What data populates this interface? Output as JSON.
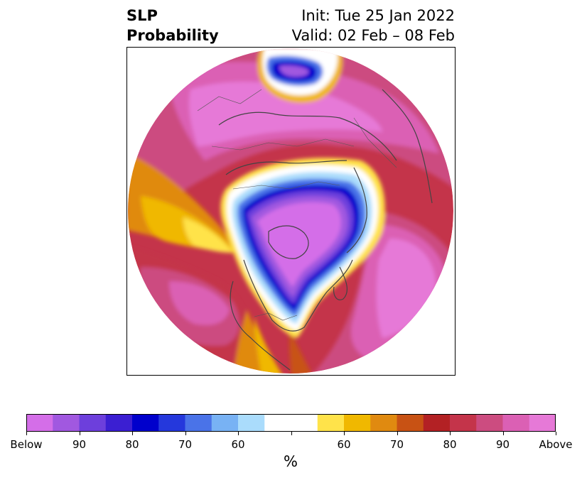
{
  "title": {
    "left_line1": "SLP",
    "left_line2": "Probability",
    "right_line1": "Init: Tue 25 Jan 2022",
    "right_line2": "Valid: 02 Feb – 08 Feb"
  },
  "colorbar": {
    "units": "%",
    "colors": [
      "#d46ee8",
      "#a158e0",
      "#6d3fdc",
      "#3b1fd2",
      "#0000cc",
      "#2538dc",
      "#4a73e8",
      "#78b2f4",
      "#aadcfc",
      "#ffffff",
      "#ffffff",
      "#ffe34a",
      "#f0b800",
      "#e08a10",
      "#c85214",
      "#b32124",
      "#c4344a",
      "#cc4c80",
      "#db60b4",
      "#e679d7"
    ],
    "tick_labels": [
      "Below",
      "90",
      "80",
      "70",
      "60",
      "",
      "60",
      "70",
      "80",
      "90",
      "Above"
    ]
  },
  "map": {
    "projection": "north-polar-stereographic",
    "field_description": "Probability of sea-level pressure below/above normal",
    "legend_categories": {
      "below": "blue-purple shades",
      "neutral": "white",
      "above": "yellow-red-magenta shades"
    }
  }
}
